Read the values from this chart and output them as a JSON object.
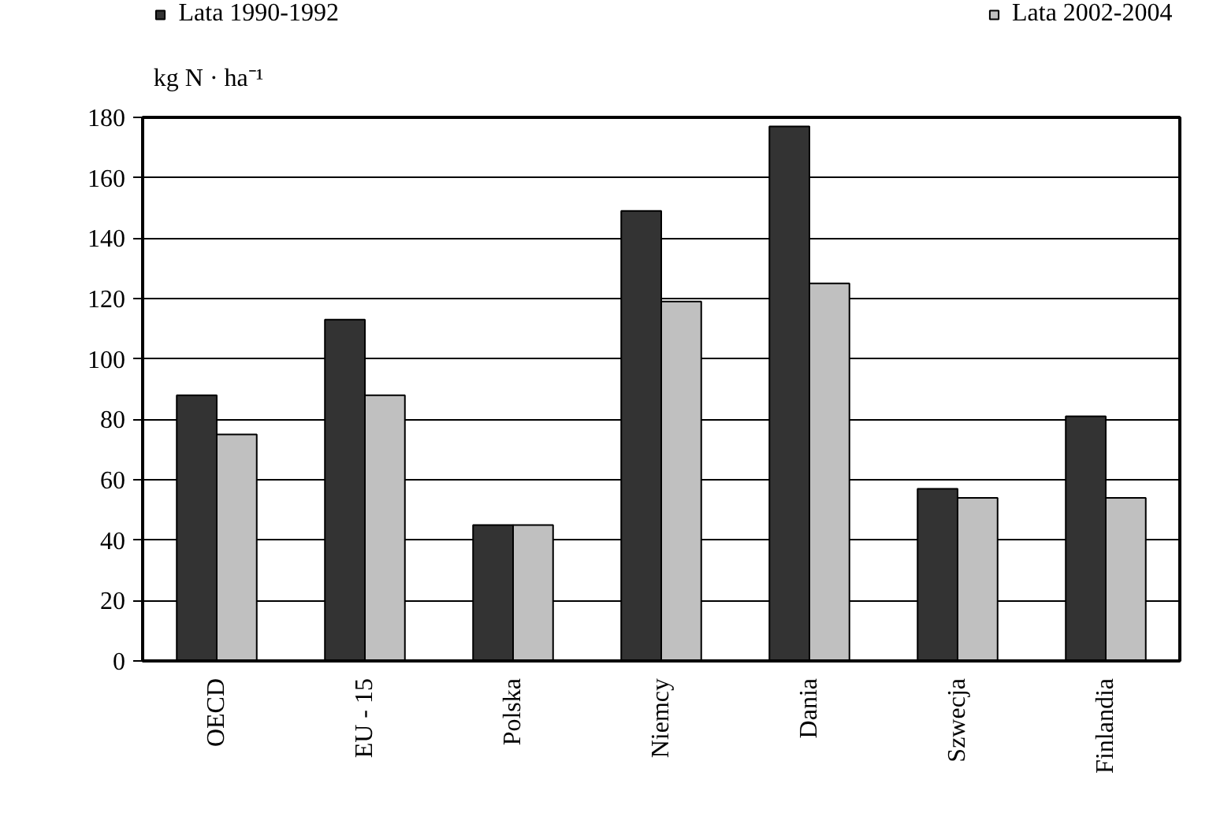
{
  "chart_data": {
    "type": "bar",
    "ylabel": "kg N · ha⁻¹",
    "categories": [
      "OECD",
      "EU - 15",
      "Polska",
      "Niemcy",
      "Dania",
      "Szwecja",
      "Finlandia"
    ],
    "series": [
      {
        "name": "Lata 1990-1992",
        "color": "#333333",
        "values": [
          88,
          113,
          45,
          149,
          177,
          57,
          81
        ]
      },
      {
        "name": "Lata 2002-2004",
        "color": "#c0c0c0",
        "values": [
          75,
          88,
          45,
          119,
          125,
          54,
          54
        ]
      }
    ],
    "ylim": [
      0,
      180
    ],
    "yticks": [
      0,
      20,
      40,
      60,
      80,
      100,
      120,
      140,
      160,
      180
    ],
    "grid": "y",
    "legend": "top"
  }
}
